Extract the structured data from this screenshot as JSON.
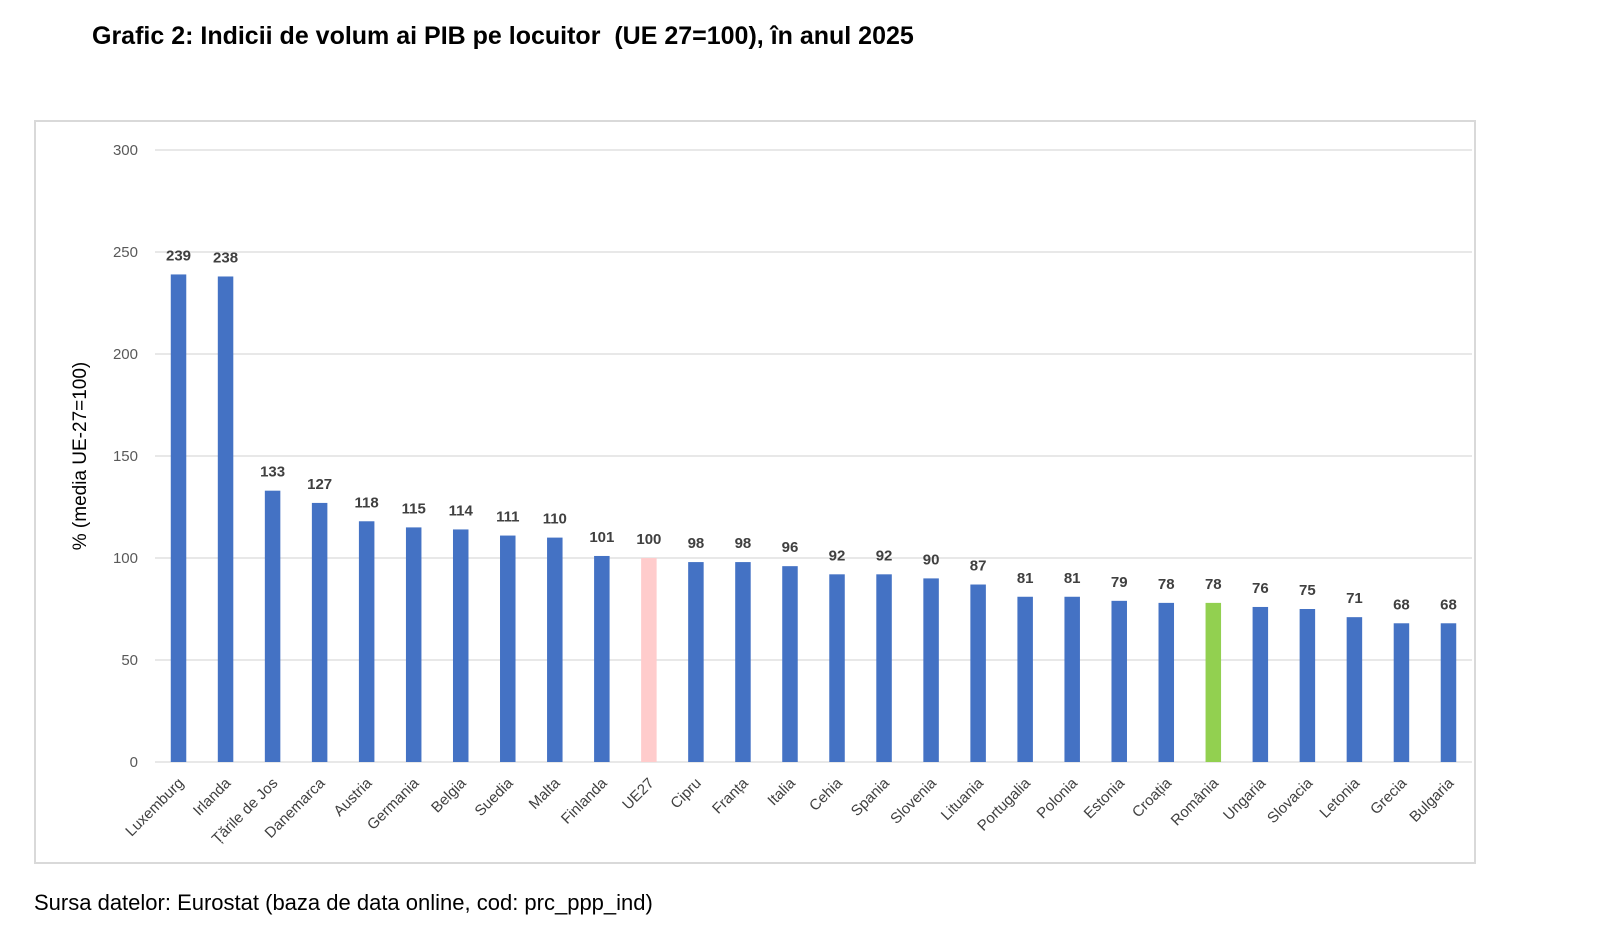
{
  "title": "Grafic 2: Indicii de volum ai PIB pe locuitor  (UE 27=100), în anul 2025",
  "source": "Sursa datelor: Eurostat (baza de data online, cod: prc_ppp_ind)",
  "chart_data": {
    "type": "bar",
    "title": "Grafic 2: Indicii de volum ai PIB pe locuitor  (UE 27=100), în anul 2025",
    "ylabel": "% (media UE-27=100)",
    "xlabel": "",
    "ylim": [
      0,
      300
    ],
    "yticks": [
      "0",
      "50",
      "100",
      "150",
      "200",
      "250",
      "300"
    ],
    "grid": true,
    "categories": [
      "Luxemburg",
      "Irlanda",
      "Țările de Jos",
      "Danemarca",
      "Austria",
      "Germania",
      "Belgia",
      "Suedia",
      "Malta",
      "Finlanda",
      "UE27",
      "Cipru",
      "Franța",
      "Italia",
      "Cehia",
      "Spania",
      "Slovenia",
      "Lituania",
      "Portugalia",
      "Polonia",
      "Estonia",
      "Croația",
      "România",
      "Ungaria",
      "Slovacia",
      "Letonia",
      "Grecia",
      "Bulgaria"
    ],
    "values": [
      239,
      238,
      133,
      127,
      118,
      115,
      114,
      111,
      110,
      101,
      100,
      98,
      98,
      96,
      92,
      92,
      90,
      87,
      81,
      81,
      79,
      78,
      78,
      76,
      75,
      71,
      68,
      68
    ],
    "colors": {
      "default": "#4472c4",
      "UE27": "#ffcccc",
      "România": "#92d050",
      "grid": "#d9d9d9"
    }
  }
}
